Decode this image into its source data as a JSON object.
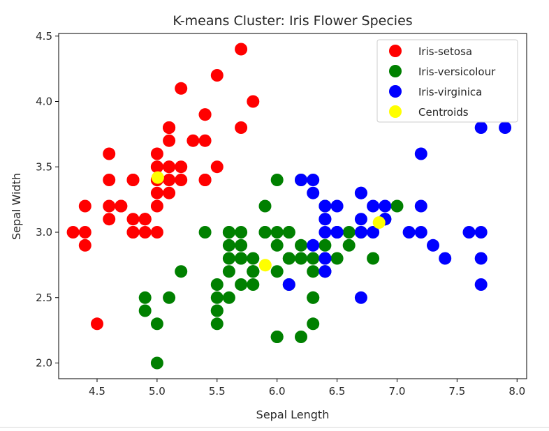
{
  "chart_data": {
    "type": "scatter",
    "title": "K-means Cluster: Iris Flower Species",
    "xlabel": "Sepal Length",
    "ylabel": "Sepal Width",
    "xlim": [
      4.18,
      8.08
    ],
    "ylim": [
      1.88,
      4.52
    ],
    "xticks": [
      4.5,
      5.0,
      5.5,
      6.0,
      6.5,
      7.0,
      7.5,
      8.0
    ],
    "yticks": [
      2.0,
      2.5,
      3.0,
      3.5,
      4.0,
      4.5
    ],
    "xtick_labels": [
      "4.5",
      "5.0",
      "5.5",
      "6.0",
      "6.5",
      "7.0",
      "7.5",
      "8.0"
    ],
    "ytick_labels": [
      "2.0",
      "2.5",
      "3.0",
      "3.5",
      "4.0",
      "4.5"
    ],
    "grid": false,
    "legend_position": "top-right",
    "series": [
      {
        "name": "Iris-setosa",
        "color": "#ff0000",
        "points": [
          [
            5.1,
            3.5
          ],
          [
            4.9,
            3.0
          ],
          [
            4.7,
            3.2
          ],
          [
            4.6,
            3.1
          ],
          [
            5.0,
            3.6
          ],
          [
            5.4,
            3.9
          ],
          [
            4.6,
            3.4
          ],
          [
            5.0,
            3.4
          ],
          [
            4.4,
            2.9
          ],
          [
            4.9,
            3.1
          ],
          [
            5.4,
            3.7
          ],
          [
            4.8,
            3.4
          ],
          [
            4.8,
            3.0
          ],
          [
            4.3,
            3.0
          ],
          [
            5.8,
            4.0
          ],
          [
            5.7,
            4.4
          ],
          [
            5.4,
            3.9
          ],
          [
            5.1,
            3.5
          ],
          [
            5.7,
            3.8
          ],
          [
            5.1,
            3.8
          ],
          [
            5.4,
            3.4
          ],
          [
            5.1,
            3.7
          ],
          [
            4.6,
            3.6
          ],
          [
            5.1,
            3.3
          ],
          [
            4.8,
            3.4
          ],
          [
            5.0,
            3.0
          ],
          [
            5.0,
            3.4
          ],
          [
            5.2,
            3.5
          ],
          [
            5.2,
            3.4
          ],
          [
            4.7,
            3.2
          ],
          [
            4.8,
            3.1
          ],
          [
            5.4,
            3.4
          ],
          [
            5.2,
            4.1
          ],
          [
            5.5,
            4.2
          ],
          [
            4.9,
            3.1
          ],
          [
            5.0,
            3.2
          ],
          [
            5.5,
            3.5
          ],
          [
            4.9,
            3.1
          ],
          [
            4.4,
            3.0
          ],
          [
            5.1,
            3.4
          ],
          [
            5.0,
            3.5
          ],
          [
            4.5,
            2.3
          ],
          [
            4.4,
            3.2
          ],
          [
            5.0,
            3.5
          ],
          [
            5.1,
            3.8
          ],
          [
            4.8,
            3.0
          ],
          [
            5.1,
            3.8
          ],
          [
            4.6,
            3.2
          ],
          [
            5.3,
            3.7
          ],
          [
            5.0,
            3.3
          ]
        ]
      },
      {
        "name": "Iris-versicolour",
        "color": "#008000",
        "points": [
          [
            5.5,
            2.3
          ],
          [
            5.7,
            2.8
          ],
          [
            4.9,
            2.4
          ],
          [
            5.2,
            2.7
          ],
          [
            5.0,
            2.0
          ],
          [
            5.9,
            3.0
          ],
          [
            6.0,
            2.2
          ],
          [
            5.6,
            2.9
          ],
          [
            5.6,
            3.0
          ],
          [
            5.8,
            2.7
          ],
          [
            6.2,
            2.2
          ],
          [
            5.6,
            2.5
          ],
          [
            5.9,
            3.2
          ],
          [
            6.1,
            2.8
          ],
          [
            6.3,
            2.5
          ],
          [
            6.1,
            2.8
          ],
          [
            6.4,
            2.9
          ],
          [
            6.6,
            3.0
          ],
          [
            6.0,
            2.9
          ],
          [
            5.7,
            2.6
          ],
          [
            5.5,
            2.4
          ],
          [
            5.5,
            2.4
          ],
          [
            5.8,
            2.7
          ],
          [
            6.0,
            2.7
          ],
          [
            5.4,
            3.0
          ],
          [
            6.0,
            3.4
          ],
          [
            6.3,
            2.3
          ],
          [
            5.6,
            3.0
          ],
          [
            5.5,
            2.5
          ],
          [
            5.5,
            2.6
          ],
          [
            6.1,
            3.0
          ],
          [
            5.8,
            2.6
          ],
          [
            5.0,
            2.3
          ],
          [
            5.6,
            2.7
          ],
          [
            5.7,
            3.0
          ],
          [
            5.7,
            2.9
          ],
          [
            6.2,
            2.9
          ],
          [
            5.1,
            2.5
          ],
          [
            5.7,
            2.8
          ],
          [
            4.9,
            2.5
          ],
          [
            5.6,
            2.8
          ],
          [
            6.0,
            2.2
          ],
          [
            6.2,
            2.8
          ],
          [
            6.3,
            2.7
          ],
          [
            6.1,
            2.6
          ],
          [
            6.3,
            2.8
          ],
          [
            6.1,
            3.0
          ],
          [
            6.0,
            3.0
          ],
          [
            6.9,
            3.1
          ],
          [
            5.8,
            2.7
          ],
          [
            6.8,
            2.8
          ],
          [
            6.7,
            3.0
          ],
          [
            6.3,
            2.5
          ],
          [
            6.5,
            2.8
          ],
          [
            6.2,
            3.4
          ],
          [
            5.9,
            3.0
          ],
          [
            7.0,
            3.2
          ],
          [
            5.8,
            2.8
          ],
          [
            6.4,
            3.2
          ],
          [
            6.4,
            2.7
          ],
          [
            6.6,
            2.9
          ]
        ]
      },
      {
        "name": "Iris-virginica",
        "color": "#0000ff",
        "points": [
          [
            6.3,
            3.3
          ],
          [
            7.1,
            3.0
          ],
          [
            6.5,
            3.0
          ],
          [
            7.6,
            3.0
          ],
          [
            7.3,
            2.9
          ],
          [
            6.7,
            2.5
          ],
          [
            7.2,
            3.6
          ],
          [
            6.5,
            3.2
          ],
          [
            6.4,
            2.7
          ],
          [
            6.8,
            3.0
          ],
          [
            6.4,
            3.2
          ],
          [
            6.5,
            3.0
          ],
          [
            7.7,
            3.8
          ],
          [
            7.7,
            2.6
          ],
          [
            6.9,
            3.2
          ],
          [
            7.7,
            2.8
          ],
          [
            6.7,
            3.3
          ],
          [
            7.2,
            3.2
          ],
          [
            6.4,
            2.8
          ],
          [
            7.2,
            3.0
          ],
          [
            7.4,
            2.8
          ],
          [
            7.9,
            3.8
          ],
          [
            6.4,
            2.8
          ],
          [
            6.1,
            2.6
          ],
          [
            7.7,
            3.0
          ],
          [
            6.3,
            3.4
          ],
          [
            6.4,
            3.1
          ],
          [
            6.9,
            3.1
          ],
          [
            6.7,
            3.1
          ],
          [
            6.9,
            3.1
          ],
          [
            6.8,
            3.2
          ],
          [
            6.7,
            3.3
          ],
          [
            6.7,
            3.0
          ],
          [
            6.5,
            3.0
          ],
          [
            6.2,
            3.4
          ],
          [
            6.3,
            2.9
          ],
          [
            6.4,
            2.7
          ],
          [
            6.4,
            3.0
          ],
          [
            6.4,
            3.1
          ]
        ]
      },
      {
        "name": "Centroids",
        "color": "#ffff00",
        "points": [
          [
            5.006,
            3.418
          ],
          [
            5.902,
            2.748
          ],
          [
            6.85,
            3.074
          ]
        ]
      }
    ]
  }
}
